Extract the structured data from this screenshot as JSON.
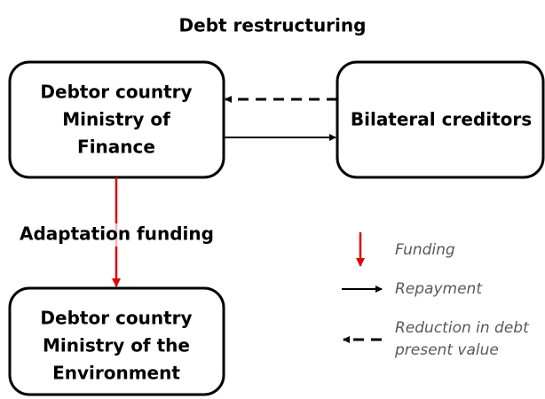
{
  "title": "Debt restructuring",
  "nodes": [
    {
      "lines": [
        "Debtor country",
        "Ministry of",
        "Finance"
      ]
    },
    {
      "lines": [
        "Bilateral creditors"
      ]
    },
    {
      "lines": [
        "Debtor country",
        "Ministry of the",
        "Environment"
      ]
    }
  ],
  "edge_label": "Adaptation funding",
  "legend": [
    {
      "label": [
        "Funding"
      ]
    },
    {
      "label": [
        "Repayment"
      ]
    },
    {
      "label": [
        "Reduction in debt",
        "present value"
      ]
    }
  ]
}
